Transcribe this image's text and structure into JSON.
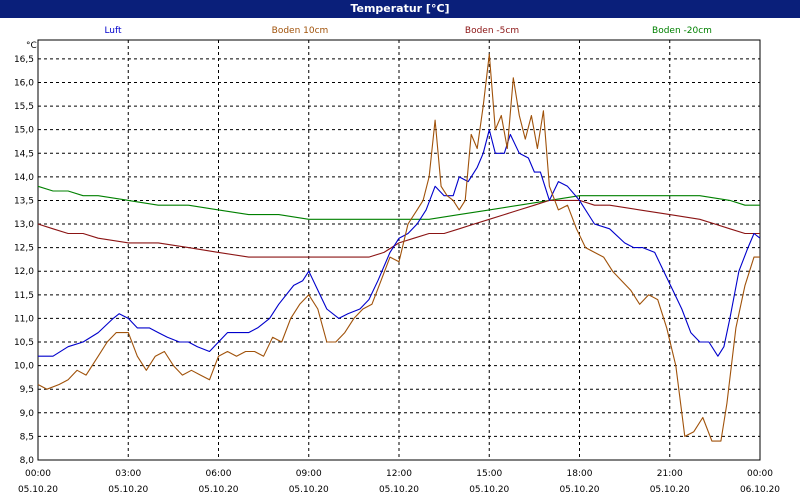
{
  "chart_data": {
    "type": "line",
    "title": "Temperatur [°C]",
    "ylabel": "°C",
    "ylim": [
      8.0,
      16.9
    ],
    "yticks": [
      "8,0",
      "8,5",
      "9,0",
      "9,5",
      "10,0",
      "10,5",
      "11,0",
      "11,5",
      "12,0",
      "12,5",
      "13,0",
      "13,5",
      "14,0",
      "14,5",
      "15,0",
      "15,5",
      "16,0",
      "16,5"
    ],
    "xlim": [
      0,
      24
    ],
    "xticks": [
      {
        "time": "00:00",
        "date": "05.10.20"
      },
      {
        "time": "03:00",
        "date": "05.10.20"
      },
      {
        "time": "06:00",
        "date": "05.10.20"
      },
      {
        "time": "09:00",
        "date": "05.10.20"
      },
      {
        "time": "12:00",
        "date": "05.10.20"
      },
      {
        "time": "15:00",
        "date": "05.10.20"
      },
      {
        "time": "18:00",
        "date": "05.10.20"
      },
      {
        "time": "21:00",
        "date": "05.10.20"
      },
      {
        "time": "00:00",
        "date": "06.10.20"
      }
    ],
    "grid": true,
    "legend_position": "top",
    "series": [
      {
        "name": "Luft",
        "color": "#0000cc",
        "points": [
          [
            0,
            10.2
          ],
          [
            0.5,
            10.2
          ],
          [
            1,
            10.4
          ],
          [
            1.5,
            10.5
          ],
          [
            2,
            10.7
          ],
          [
            2.5,
            11.0
          ],
          [
            2.7,
            11.1
          ],
          [
            3,
            11.0
          ],
          [
            3.3,
            10.8
          ],
          [
            3.7,
            10.8
          ],
          [
            4,
            10.7
          ],
          [
            4.3,
            10.6
          ],
          [
            4.7,
            10.5
          ],
          [
            5,
            10.5
          ],
          [
            5.3,
            10.4
          ],
          [
            5.7,
            10.3
          ],
          [
            6,
            10.5
          ],
          [
            6.3,
            10.7
          ],
          [
            6.7,
            10.7
          ],
          [
            7,
            10.7
          ],
          [
            7.3,
            10.8
          ],
          [
            7.7,
            11.0
          ],
          [
            8,
            11.3
          ],
          [
            8.5,
            11.7
          ],
          [
            8.8,
            11.8
          ],
          [
            9,
            12.0
          ],
          [
            9.3,
            11.6
          ],
          [
            9.6,
            11.2
          ],
          [
            10,
            11.0
          ],
          [
            10.3,
            11.1
          ],
          [
            10.7,
            11.2
          ],
          [
            11,
            11.4
          ],
          [
            11.3,
            11.8
          ],
          [
            11.7,
            12.4
          ],
          [
            12,
            12.7
          ],
          [
            12.3,
            12.8
          ],
          [
            12.6,
            13.0
          ],
          [
            12.9,
            13.3
          ],
          [
            13.2,
            13.8
          ],
          [
            13.5,
            13.6
          ],
          [
            13.8,
            13.6
          ],
          [
            14.0,
            14.0
          ],
          [
            14.3,
            13.9
          ],
          [
            14.6,
            14.2
          ],
          [
            14.8,
            14.5
          ],
          [
            15.0,
            15.0
          ],
          [
            15.2,
            14.5
          ],
          [
            15.5,
            14.5
          ],
          [
            15.7,
            14.9
          ],
          [
            16.0,
            14.5
          ],
          [
            16.3,
            14.4
          ],
          [
            16.5,
            14.1
          ],
          [
            16.7,
            14.1
          ],
          [
            17.0,
            13.5
          ],
          [
            17.3,
            13.9
          ],
          [
            17.6,
            13.8
          ],
          [
            18,
            13.5
          ],
          [
            18.5,
            13.0
          ],
          [
            19,
            12.9
          ],
          [
            19.5,
            12.6
          ],
          [
            19.8,
            12.5
          ],
          [
            20.1,
            12.5
          ],
          [
            20.5,
            12.4
          ],
          [
            20.8,
            12.0
          ],
          [
            21.1,
            11.6
          ],
          [
            21.4,
            11.2
          ],
          [
            21.7,
            10.7
          ],
          [
            22,
            10.5
          ],
          [
            22.3,
            10.5
          ],
          [
            22.6,
            10.2
          ],
          [
            22.8,
            10.4
          ],
          [
            23.0,
            11.0
          ],
          [
            23.3,
            12.0
          ],
          [
            23.6,
            12.5
          ],
          [
            23.8,
            12.8
          ],
          [
            24,
            12.7
          ]
        ]
      },
      {
        "name": "Boden 10cm",
        "color": "#a0520a",
        "points": [
          [
            0,
            9.6
          ],
          [
            0.3,
            9.5
          ],
          [
            0.7,
            9.6
          ],
          [
            1,
            9.7
          ],
          [
            1.3,
            9.9
          ],
          [
            1.6,
            9.8
          ],
          [
            2,
            10.2
          ],
          [
            2.3,
            10.5
          ],
          [
            2.6,
            10.7
          ],
          [
            3,
            10.7
          ],
          [
            3.3,
            10.2
          ],
          [
            3.6,
            9.9
          ],
          [
            3.9,
            10.2
          ],
          [
            4.2,
            10.3
          ],
          [
            4.5,
            10.0
          ],
          [
            4.8,
            9.8
          ],
          [
            5.1,
            9.9
          ],
          [
            5.4,
            9.8
          ],
          [
            5.7,
            9.7
          ],
          [
            6,
            10.2
          ],
          [
            6.3,
            10.3
          ],
          [
            6.6,
            10.2
          ],
          [
            6.9,
            10.3
          ],
          [
            7.2,
            10.3
          ],
          [
            7.5,
            10.2
          ],
          [
            7.8,
            10.6
          ],
          [
            8.1,
            10.5
          ],
          [
            8.4,
            11.0
          ],
          [
            8.7,
            11.3
          ],
          [
            9.0,
            11.5
          ],
          [
            9.3,
            11.2
          ],
          [
            9.6,
            10.5
          ],
          [
            9.9,
            10.5
          ],
          [
            10.2,
            10.7
          ],
          [
            10.5,
            11.0
          ],
          [
            10.8,
            11.2
          ],
          [
            11.1,
            11.3
          ],
          [
            11.4,
            11.8
          ],
          [
            11.7,
            12.3
          ],
          [
            12.0,
            12.2
          ],
          [
            12.3,
            13.0
          ],
          [
            12.6,
            13.3
          ],
          [
            12.8,
            13.5
          ],
          [
            13.0,
            14.0
          ],
          [
            13.2,
            15.2
          ],
          [
            13.4,
            13.8
          ],
          [
            13.6,
            13.6
          ],
          [
            13.8,
            13.5
          ],
          [
            14.0,
            13.3
          ],
          [
            14.2,
            13.5
          ],
          [
            14.4,
            14.9
          ],
          [
            14.6,
            14.6
          ],
          [
            14.8,
            15.5
          ],
          [
            15.0,
            16.6
          ],
          [
            15.2,
            15.0
          ],
          [
            15.4,
            15.3
          ],
          [
            15.6,
            14.6
          ],
          [
            15.8,
            16.1
          ],
          [
            16.0,
            15.3
          ],
          [
            16.2,
            14.8
          ],
          [
            16.4,
            15.3
          ],
          [
            16.6,
            14.6
          ],
          [
            16.8,
            15.4
          ],
          [
            17.0,
            13.8
          ],
          [
            17.3,
            13.3
          ],
          [
            17.6,
            13.4
          ],
          [
            17.9,
            12.9
          ],
          [
            18.2,
            12.5
          ],
          [
            18.5,
            12.4
          ],
          [
            18.8,
            12.3
          ],
          [
            19.1,
            12.0
          ],
          [
            19.4,
            11.8
          ],
          [
            19.7,
            11.6
          ],
          [
            20.0,
            11.3
          ],
          [
            20.3,
            11.5
          ],
          [
            20.6,
            11.4
          ],
          [
            20.9,
            10.8
          ],
          [
            21.2,
            10.0
          ],
          [
            21.5,
            8.5
          ],
          [
            21.8,
            8.6
          ],
          [
            22.1,
            8.9
          ],
          [
            22.4,
            8.4
          ],
          [
            22.7,
            8.4
          ],
          [
            22.9,
            9.2
          ],
          [
            23.2,
            10.8
          ],
          [
            23.5,
            11.7
          ],
          [
            23.8,
            12.3
          ],
          [
            24,
            12.3
          ]
        ]
      },
      {
        "name": "Boden -5cm",
        "color": "#8b1414",
        "points": [
          [
            0,
            13.0
          ],
          [
            0.5,
            12.9
          ],
          [
            1,
            12.8
          ],
          [
            1.5,
            12.8
          ],
          [
            2,
            12.7
          ],
          [
            3,
            12.6
          ],
          [
            4,
            12.6
          ],
          [
            5,
            12.5
          ],
          [
            6,
            12.4
          ],
          [
            7,
            12.3
          ],
          [
            8,
            12.3
          ],
          [
            9,
            12.3
          ],
          [
            10,
            12.3
          ],
          [
            11,
            12.3
          ],
          [
            11.5,
            12.4
          ],
          [
            12,
            12.6
          ],
          [
            12.5,
            12.7
          ],
          [
            13,
            12.8
          ],
          [
            13.5,
            12.8
          ],
          [
            14,
            12.9
          ],
          [
            14.5,
            13.0
          ],
          [
            15,
            13.1
          ],
          [
            15.5,
            13.2
          ],
          [
            16,
            13.3
          ],
          [
            16.5,
            13.4
          ],
          [
            17,
            13.5
          ],
          [
            17.5,
            13.5
          ],
          [
            18,
            13.5
          ],
          [
            18.5,
            13.4
          ],
          [
            19,
            13.4
          ],
          [
            20,
            13.3
          ],
          [
            21,
            13.2
          ],
          [
            22,
            13.1
          ],
          [
            22.5,
            13.0
          ],
          [
            23,
            12.9
          ],
          [
            23.5,
            12.8
          ],
          [
            24,
            12.8
          ]
        ]
      },
      {
        "name": "Boden -20cm",
        "color": "#008000",
        "points": [
          [
            0,
            13.8
          ],
          [
            0.5,
            13.7
          ],
          [
            1,
            13.7
          ],
          [
            1.5,
            13.6
          ],
          [
            2,
            13.6
          ],
          [
            3,
            13.5
          ],
          [
            4,
            13.4
          ],
          [
            5,
            13.4
          ],
          [
            6,
            13.3
          ],
          [
            7,
            13.2
          ],
          [
            8,
            13.2
          ],
          [
            9,
            13.1
          ],
          [
            10,
            13.1
          ],
          [
            11,
            13.1
          ],
          [
            12,
            13.1
          ],
          [
            13,
            13.1
          ],
          [
            14,
            13.2
          ],
          [
            15,
            13.3
          ],
          [
            16,
            13.4
          ],
          [
            17,
            13.5
          ],
          [
            18,
            13.6
          ],
          [
            19,
            13.6
          ],
          [
            20,
            13.6
          ],
          [
            21,
            13.6
          ],
          [
            22,
            13.6
          ],
          [
            23,
            13.5
          ],
          [
            23.5,
            13.4
          ],
          [
            24,
            13.4
          ]
        ]
      }
    ]
  }
}
